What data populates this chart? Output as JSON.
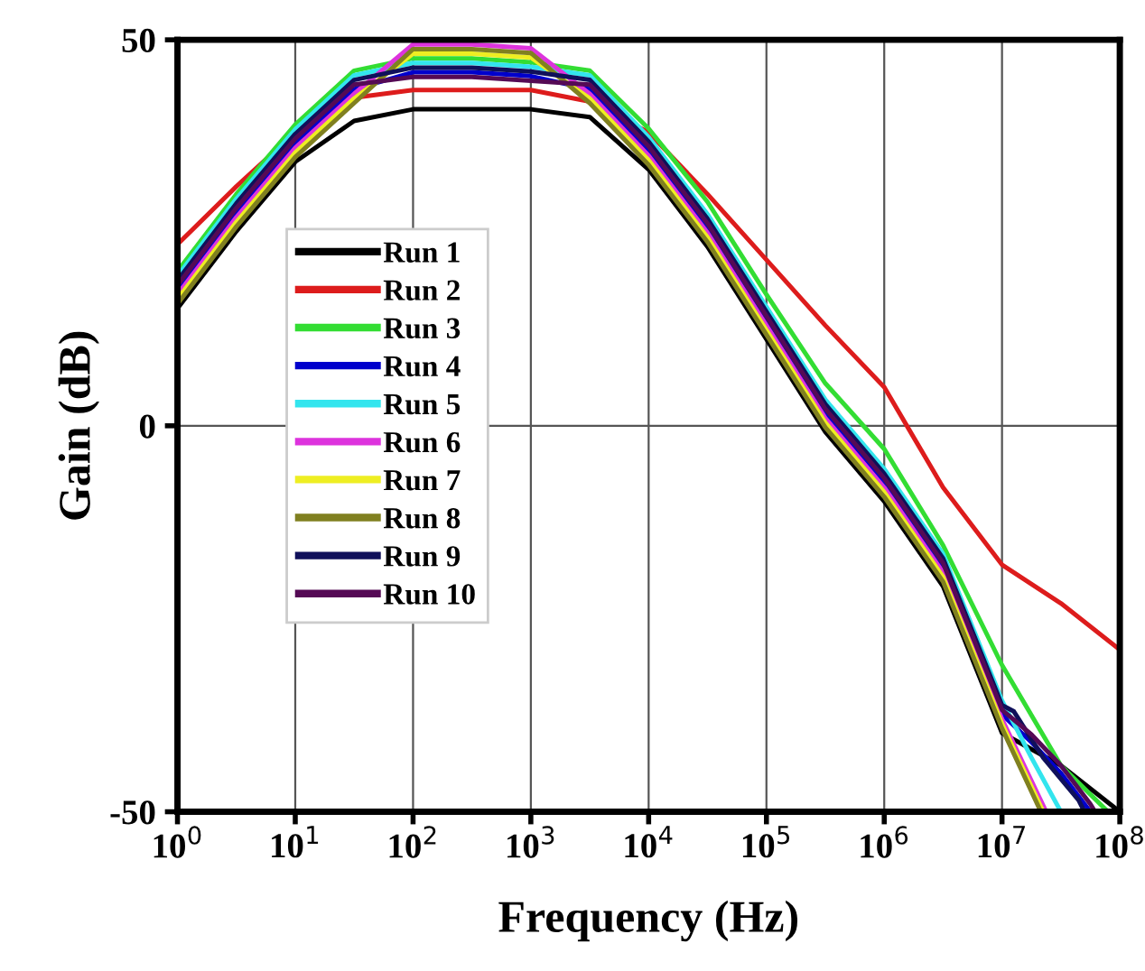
{
  "chart_data": {
    "type": "line",
    "xlabel": "Frequency (Hz)",
    "ylabel": "Gain (dB)",
    "log": "x",
    "xlim": [
      1,
      100000000
    ],
    "ylim": [
      -50,
      50
    ],
    "xticks": [
      {
        "value": 1,
        "label": "10$^{0}$"
      },
      {
        "value": 10,
        "label": "10$^{1}$"
      },
      {
        "value": 100,
        "label": "10$^{2}$"
      },
      {
        "value": 1000,
        "label": "10$^{3}$"
      },
      {
        "value": 10000,
        "label": "10$^{4}$"
      },
      {
        "value": 100000,
        "label": "10$^{5}$"
      },
      {
        "value": 1000000,
        "label": "10$^{6}$"
      },
      {
        "value": 10000000,
        "label": "10$^{7}$"
      },
      {
        "value": 100000000,
        "label": "10$^{8}$"
      }
    ],
    "yticks": [
      -50,
      0,
      50
    ],
    "grid": true,
    "legend": "left",
    "line_style": "solid",
    "marker": "none",
    "series": [
      {
        "name": "Run 1",
        "color": "#000000",
        "x": [
          1,
          3.16,
          10,
          31.6,
          100,
          316,
          1000,
          3162,
          10000,
          31623,
          100000,
          316228,
          1000000,
          3162278,
          10000000,
          31622777,
          100000000
        ],
        "values": [
          15.2,
          25.2,
          34.2,
          39.5,
          41,
          41,
          41,
          40,
          33.2,
          23.2,
          11.2,
          -0.8,
          -9.8,
          -20.8,
          -39.8,
          -44,
          -50
        ]
      },
      {
        "name": "Run 2",
        "color": "#dd1c1c",
        "x": [
          1,
          3.16,
          10,
          31.6,
          100,
          316,
          1000,
          3162,
          10000,
          31623,
          100000,
          316228,
          1000000,
          3162278,
          10000000,
          31622777,
          100000000
        ],
        "values": [
          23.5,
          31,
          38,
          42.5,
          43.5,
          43.5,
          43.5,
          42,
          38,
          30,
          21.5,
          13,
          5,
          -8,
          -18,
          -23,
          -29
        ]
      },
      {
        "name": "Run 3",
        "color": "#33dd33",
        "x": [
          1,
          3.16,
          10,
          31.6,
          100,
          316,
          1000,
          3162,
          10000,
          31623,
          100000,
          316228,
          1000000,
          3162278,
          10000000,
          31622777,
          79432823
        ],
        "values": [
          20,
          30,
          39,
          46,
          47.6,
          47.6,
          47.1,
          46,
          38.5,
          29,
          17,
          5.5,
          -3,
          -15.5,
          -31,
          -44,
          -50
        ]
      },
      {
        "name": "Run 4",
        "color": "#0000cc",
        "x": [
          1,
          3.16,
          10,
          31.6,
          100,
          316,
          1000,
          3162,
          10000,
          31623,
          100000,
          316228,
          1000000,
          3162278,
          10000000,
          17782794,
          31622777,
          56234133
        ],
        "values": [
          17.6,
          27.6,
          36.6,
          43.6,
          45.8,
          45.8,
          45.3,
          43.6,
          35.6,
          25.6,
          13.6,
          1.6,
          -7.4,
          -18.4,
          -37.4,
          -41,
          -45,
          -50
        ]
      },
      {
        "name": "Run 5",
        "color": "#33e5ee",
        "x": [
          1,
          3.16,
          10,
          31.6,
          100,
          316,
          1000,
          3162,
          10000,
          31623,
          100000,
          316228,
          1000000,
          3162278,
          10000000,
          17782794,
          31622777
        ],
        "values": [
          19.4,
          29.4,
          38.4,
          45.4,
          47,
          47,
          46.5,
          45.4,
          37.4,
          27.4,
          15.4,
          3.4,
          -5.6,
          -16.6,
          -35.6,
          -43,
          -50
        ]
      },
      {
        "name": "Run 6",
        "color": "#dd33dd",
        "x": [
          1,
          3.16,
          10,
          31.6,
          100,
          316,
          1000,
          3162,
          10000,
          31623,
          100000,
          316228,
          1000000,
          3162278,
          10000000,
          23713737
        ],
        "values": [
          17,
          27,
          36,
          43,
          49.4,
          49.4,
          48.9,
          43,
          35,
          25,
          13,
          1,
          -8,
          -19,
          -38,
          -50
        ]
      },
      {
        "name": "Run 7",
        "color": "#eeee22",
        "x": [
          1,
          3.16,
          10,
          31.6,
          100,
          316,
          1000,
          3162,
          10000,
          31623,
          100000,
          316228,
          1000000,
          3162278,
          10000000,
          22387211
        ],
        "values": [
          16.4,
          26.4,
          35.4,
          42.4,
          48.2,
          48.2,
          47.7,
          42.4,
          34.4,
          24.4,
          12.4,
          0.4,
          -8.6,
          -19.6,
          -38.6,
          -50
        ]
      },
      {
        "name": "Run 8",
        "color": "#808020",
        "x": [
          1,
          3.16,
          10,
          31.6,
          100,
          316,
          1000,
          3162,
          10000,
          31623,
          100000,
          316228,
          1000000,
          3162278,
          10000000,
          21379621
        ],
        "values": [
          15.8,
          25.8,
          34.8,
          41.8,
          48.8,
          48.8,
          48.3,
          41.8,
          33.8,
          23.8,
          11.8,
          -0.2,
          -9.2,
          -20.2,
          -39.2,
          -50
        ]
      },
      {
        "name": "Run 9",
        "color": "#10105a",
        "x": [
          1,
          3.16,
          10,
          31.6,
          100,
          316,
          1000,
          3162,
          10000,
          31623,
          100000,
          316228,
          1000000,
          3162278,
          10000000,
          12589254,
          22387211,
          44668359,
          50118723
        ],
        "values": [
          18.8,
          28.8,
          37.8,
          44.8,
          46.4,
          46.4,
          45.9,
          44.8,
          36.8,
          26.8,
          14.8,
          2.8,
          -6.2,
          -17.2,
          -36.2,
          -37,
          -43,
          -48.5,
          -50
        ]
      },
      {
        "name": "Run 10",
        "color": "#550a55",
        "x": [
          1,
          3.16,
          10,
          31.6,
          100,
          316,
          1000,
          3162,
          10000,
          31623,
          100000,
          316228,
          1000000,
          3162278,
          10000000,
          17782794,
          31622777,
          56234133,
          61659500
        ],
        "values": [
          18.2,
          28.2,
          37.2,
          44.2,
          45.2,
          45.2,
          44.7,
          44.2,
          36.2,
          26.2,
          14.2,
          2.2,
          -6.8,
          -17.8,
          -36.8,
          -40,
          -44,
          -49,
          -50
        ]
      }
    ]
  }
}
